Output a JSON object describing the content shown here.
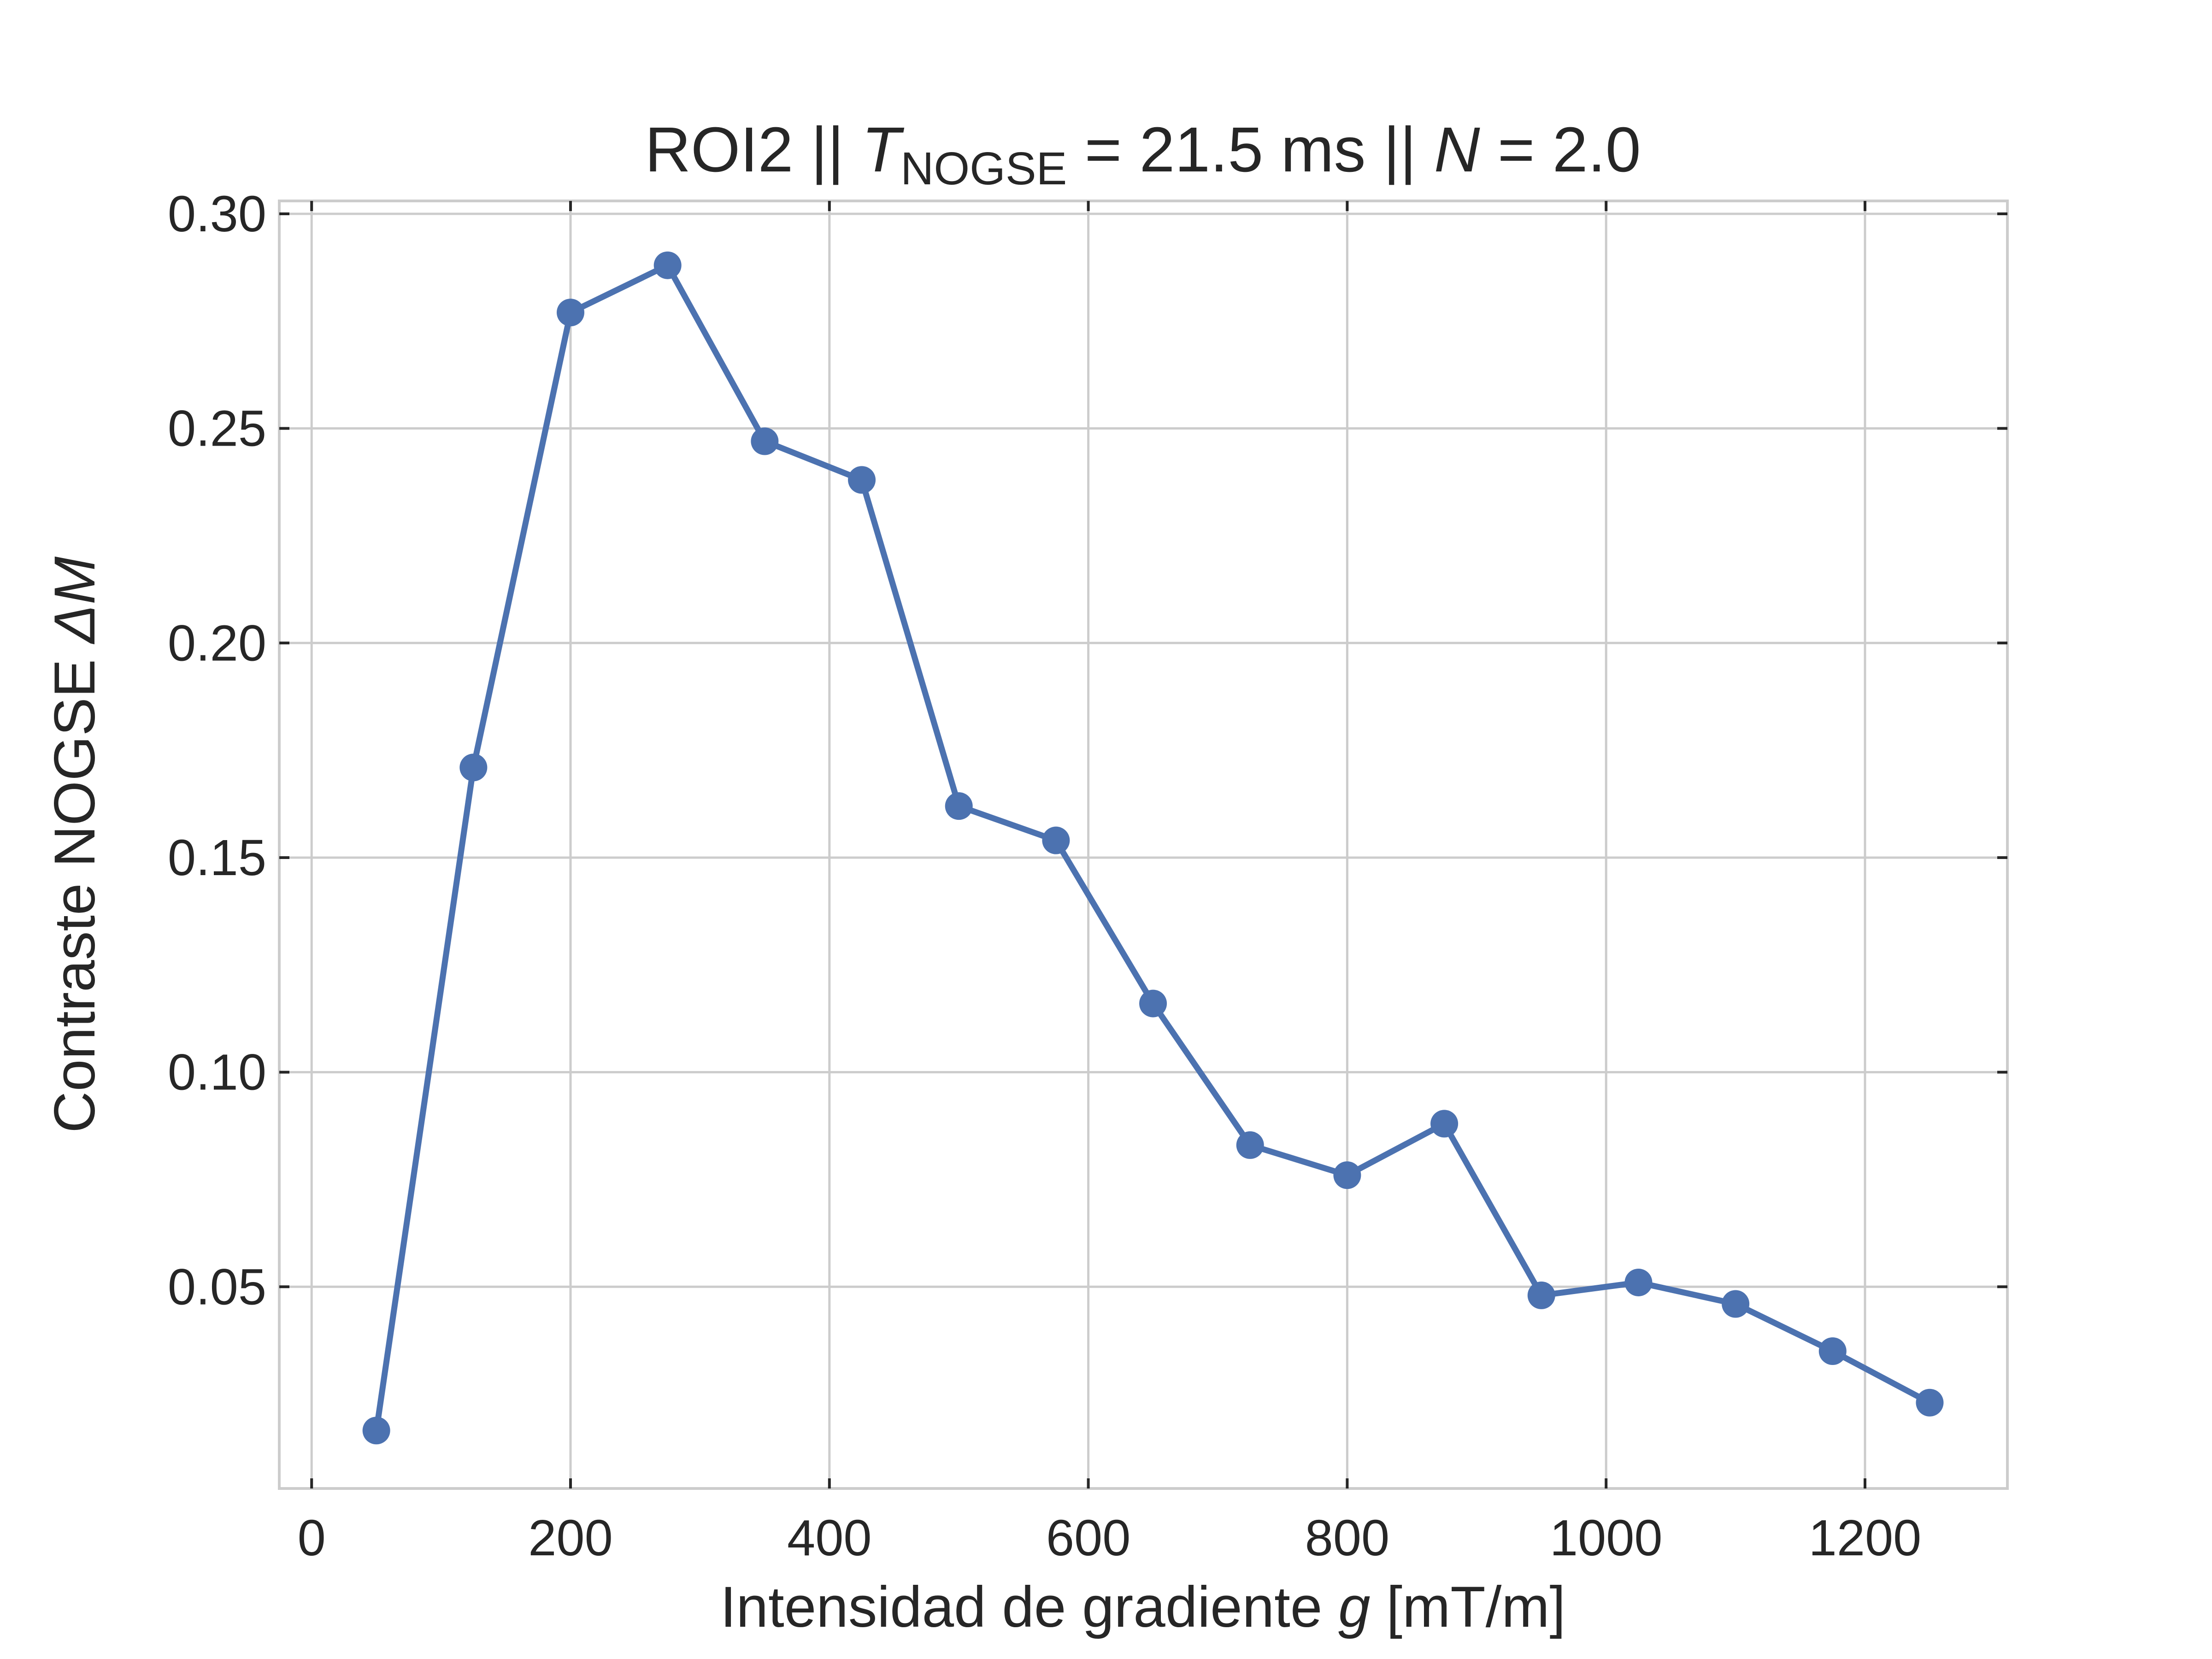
{
  "chart_data": {
    "type": "line",
    "title": {
      "prefix": "ROI2 || ",
      "t_symbol": "T",
      "t_subscript": "NOGSE",
      "t_value": " = 21.5 ms  ||  ",
      "n_symbol": "N",
      "n_value": " = 2.0"
    },
    "xlabel": {
      "text": "Intensidad de gradiente ",
      "symbol": "g",
      "unit": " [mT/m]"
    },
    "ylabel": {
      "text": "Contraste NOGSE ",
      "symbol": "ΔM"
    },
    "xlim": [
      -25,
      1310
    ],
    "ylim": [
      0.003,
      0.303
    ],
    "xticks": [
      0,
      200,
      400,
      600,
      800,
      1000,
      1200
    ],
    "xtick_labels": [
      "0",
      "200",
      "400",
      "600",
      "800",
      "1000",
      "1200"
    ],
    "yticks": [
      0.05,
      0.1,
      0.15,
      0.2,
      0.25,
      0.3
    ],
    "ytick_labels": [
      "0.05",
      "0.10",
      "0.15",
      "0.20",
      "0.25",
      "0.30"
    ],
    "grid": true,
    "color": "#4c72b0",
    "series": [
      {
        "x": [
          50,
          125,
          200,
          275,
          350,
          425,
          500,
          575,
          650,
          725,
          800,
          875,
          950,
          1025,
          1100,
          1175,
          1250
        ],
        "y": [
          0.0165,
          0.171,
          0.277,
          0.288,
          0.247,
          0.238,
          0.162,
          0.154,
          0.116,
          0.083,
          0.076,
          0.088,
          0.048,
          0.051,
          0.046,
          0.035,
          0.023
        ]
      }
    ]
  }
}
